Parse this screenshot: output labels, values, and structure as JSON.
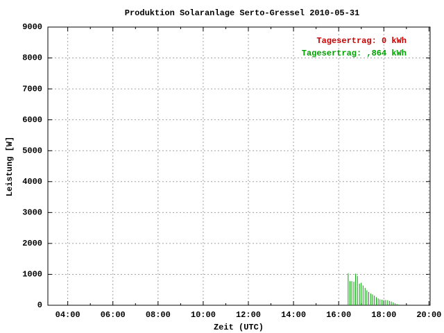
{
  "chart_data": {
    "type": "impulse",
    "title": "Produktion Solaranlage Serto-Gressel 2010-05-31",
    "x_label": "Zeit (UTC)",
    "y_label": "Leistung [W]",
    "annotations": [
      {
        "text": "Tagesertrag: 0 kWh",
        "color": "#cc0000"
      }
    ],
    "series": [
      {
        "name": "Tagesertrag: ,864 kWh",
        "color": "#00a000",
        "x": [
          16.42,
          16.5,
          16.58,
          16.67,
          16.75,
          16.83,
          16.92,
          17.0,
          17.08,
          17.17,
          17.25,
          17.33,
          17.42,
          17.5,
          17.58,
          17.67,
          17.75,
          17.83,
          17.92,
          18.0,
          18.08,
          18.17,
          18.25,
          18.33,
          18.42,
          18.5,
          18.58,
          18.67
        ],
        "values": [
          1030,
          780,
          780,
          760,
          1020,
          950,
          700,
          730,
          640,
          560,
          480,
          430,
          380,
          350,
          310,
          260,
          220,
          190,
          180,
          170,
          170,
          160,
          140,
          120,
          90,
          60,
          40,
          20
        ]
      }
    ],
    "xlim": [
      3.12,
      20.05
    ],
    "xticks": [
      {
        "value": 4,
        "label": "04:00"
      },
      {
        "value": 6,
        "label": "06:00"
      },
      {
        "value": 8,
        "label": "08:00"
      },
      {
        "value": 10,
        "label": "10:00"
      },
      {
        "value": 12,
        "label": "12:00"
      },
      {
        "value": 14,
        "label": "14:00"
      },
      {
        "value": 16,
        "label": "16:00"
      },
      {
        "value": 18,
        "label": "18:00"
      },
      {
        "value": 20,
        "label": "20:00"
      }
    ],
    "ylim": [
      0,
      9000
    ],
    "yticks": [
      0,
      1000,
      2000,
      3000,
      4000,
      5000,
      6000,
      7000,
      8000,
      9000
    ],
    "grid": true
  }
}
